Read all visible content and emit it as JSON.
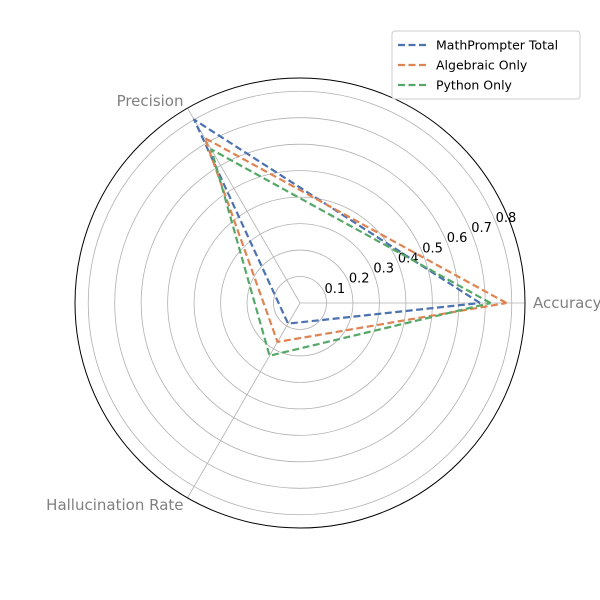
{
  "chart_data": {
    "type": "radar",
    "axes": [
      "Accuracy",
      "Precision",
      "Hallucination Rate"
    ],
    "rlim": [
      0,
      0.85
    ],
    "rticks": [
      0.1,
      0.2,
      0.3,
      0.4,
      0.5,
      0.6,
      0.7,
      0.8
    ],
    "rtick_labels": [
      "0.1",
      "0.2",
      "0.3",
      "0.4",
      "0.5",
      "0.6",
      "0.7",
      "0.8"
    ],
    "grid": true,
    "legend_position": "top-right",
    "line_style": "dashed",
    "series": [
      {
        "name": "MathPrompter Total",
        "color": "#4c72b0",
        "values": [
          0.68,
          0.8,
          0.09
        ]
      },
      {
        "name": "Algebraic Only",
        "color": "#dd8452",
        "values": [
          0.78,
          0.72,
          0.17
        ]
      },
      {
        "name": "Python Only",
        "color": "#55a868",
        "values": [
          0.72,
          0.67,
          0.23
        ]
      }
    ]
  }
}
